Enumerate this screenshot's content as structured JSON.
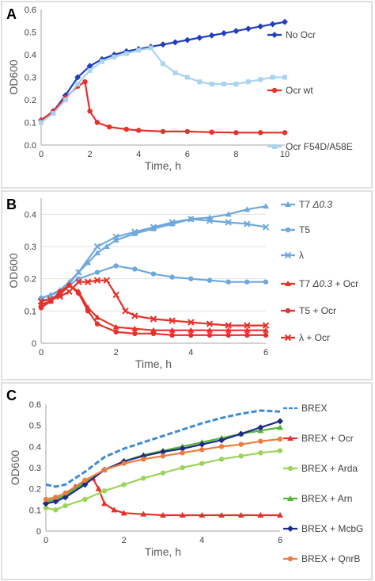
{
  "chart_data": [
    {
      "panel": "A",
      "type": "line",
      "xlabel": "Time, h",
      "ylabel": "OD600",
      "xlim": [
        0,
        10
      ],
      "ylim": [
        0,
        0.6
      ],
      "xticks": [
        0,
        2,
        4,
        6,
        8,
        10
      ],
      "xtick_labels": [
        "0",
        "2",
        "4",
        "6",
        "8",
        "10"
      ],
      "yticks": [
        0,
        0.1,
        0.2,
        0.3,
        0.4,
        0.5,
        0.6
      ],
      "ytick_labels": [
        "0.0",
        "0.1",
        "0.2",
        "0.3",
        "0.4",
        "0.5",
        "0.6"
      ],
      "grid": false,
      "legend": "right",
      "series": [
        {
          "name": "No Ocr",
          "color": "#1f3fbf",
          "marker": "diamond",
          "x": [
            0,
            0.5,
            1,
            1.5,
            2,
            2.5,
            3,
            3.5,
            4,
            4.5,
            5,
            5.5,
            6,
            6.5,
            7,
            7.5,
            8,
            8.5,
            9,
            9.5,
            10
          ],
          "y": [
            0.11,
            0.15,
            0.22,
            0.3,
            0.35,
            0.38,
            0.4,
            0.415,
            0.425,
            0.435,
            0.445,
            0.455,
            0.465,
            0.475,
            0.485,
            0.495,
            0.505,
            0.515,
            0.525,
            0.535,
            0.545
          ]
        },
        {
          "name": "Ocr wt",
          "color": "#e6312a",
          "marker": "circle",
          "x": [
            0,
            0.5,
            1,
            1.5,
            1.8,
            2.0,
            2.3,
            2.8,
            3.5,
            4,
            5,
            6,
            7,
            8,
            9,
            10
          ],
          "y": [
            0.11,
            0.15,
            0.21,
            0.26,
            0.28,
            0.15,
            0.1,
            0.08,
            0.07,
            0.065,
            0.06,
            0.06,
            0.057,
            0.055,
            0.055,
            0.055
          ]
        },
        {
          "name": "Ocr F54D/A58E",
          "color": "#a9d3ee",
          "marker": "square",
          "x": [
            0,
            0.5,
            1,
            1.5,
            2,
            2.5,
            3,
            3.5,
            4,
            4.5,
            5,
            5.5,
            6,
            6.5,
            7,
            7.5,
            8,
            8.5,
            9,
            9.5,
            10
          ],
          "y": [
            0.1,
            0.14,
            0.2,
            0.27,
            0.33,
            0.37,
            0.39,
            0.405,
            0.42,
            0.43,
            0.36,
            0.32,
            0.3,
            0.28,
            0.27,
            0.27,
            0.27,
            0.28,
            0.29,
            0.3,
            0.3
          ]
        }
      ]
    },
    {
      "panel": "B",
      "type": "line",
      "xlabel": "Time, h",
      "ylabel": "OD600",
      "xlim": [
        0,
        6
      ],
      "ylim": [
        0,
        0.45
      ],
      "xticks": [
        0,
        2,
        4,
        6
      ],
      "xtick_labels": [
        "0",
        "2",
        "4",
        "6"
      ],
      "yticks": [
        0,
        0.1,
        0.2,
        0.3,
        0.4
      ],
      "ytick_labels": [
        "0",
        "0.1",
        "0.2",
        "0.3",
        "0.4"
      ],
      "grid": true,
      "legend": "right",
      "series": [
        {
          "name": "T7 Δ0.3",
          "legend_prefix": "T7 ",
          "legend_italic": "Δ0.3",
          "legend_suffix": "",
          "color": "#6fa8dc",
          "marker": "triangle",
          "x": [
            0,
            0.25,
            0.5,
            0.75,
            1,
            1.25,
            1.5,
            1.75,
            2,
            2.5,
            3,
            3.5,
            4,
            4.5,
            5,
            5.5,
            6
          ],
          "y": [
            0.14,
            0.15,
            0.165,
            0.19,
            0.22,
            0.25,
            0.28,
            0.3,
            0.32,
            0.34,
            0.355,
            0.37,
            0.385,
            0.39,
            0.4,
            0.415,
            0.425
          ]
        },
        {
          "name": "T5",
          "legend_prefix": "T5",
          "color": "#6fa8dc",
          "marker": "circle",
          "x": [
            0,
            0.5,
            1,
            1.5,
            2,
            2.5,
            3,
            3.5,
            4,
            4.5,
            5,
            5.5,
            6
          ],
          "y": [
            0.14,
            0.16,
            0.2,
            0.22,
            0.24,
            0.23,
            0.215,
            0.205,
            0.2,
            0.195,
            0.19,
            0.19,
            0.19
          ]
        },
        {
          "name": "λ",
          "legend_prefix": "λ",
          "color": "#6fa8dc",
          "marker": "cross",
          "x": [
            0,
            0.5,
            1,
            1.5,
            2,
            2.5,
            3,
            3.5,
            4,
            4.5,
            5,
            5.5,
            6
          ],
          "y": [
            0.13,
            0.15,
            0.22,
            0.3,
            0.33,
            0.345,
            0.36,
            0.375,
            0.385,
            0.38,
            0.375,
            0.37,
            0.36
          ]
        },
        {
          "name": "T7 Δ0.3 + Ocr",
          "legend_prefix": "T7 ",
          "legend_italic": "Δ0.3",
          "legend_suffix": " + Ocr",
          "color": "#e6312a",
          "marker": "triangle",
          "x": [
            0,
            0.25,
            0.5,
            0.75,
            1,
            1.25,
            1.5,
            2,
            2.5,
            3,
            3.5,
            4,
            4.5,
            5,
            5.5,
            6
          ],
          "y": [
            0.12,
            0.13,
            0.15,
            0.18,
            0.16,
            0.11,
            0.08,
            0.05,
            0.045,
            0.04,
            0.04,
            0.04,
            0.04,
            0.04,
            0.04,
            0.04
          ]
        },
        {
          "name": "T5 + Ocr",
          "legend_prefix": "T5 + Ocr",
          "color": "#e6312a",
          "marker": "circle",
          "x": [
            0,
            0.25,
            0.5,
            0.75,
            1,
            1.25,
            1.5,
            2,
            2.5,
            3,
            3.5,
            4,
            4.5,
            5,
            5.5,
            6
          ],
          "y": [
            0.11,
            0.13,
            0.16,
            0.18,
            0.155,
            0.1,
            0.06,
            0.035,
            0.03,
            0.03,
            0.025,
            0.025,
            0.025,
            0.025,
            0.025,
            0.025
          ]
        },
        {
          "name": "λ + Ocr",
          "legend_prefix": "λ + Ocr",
          "color": "#e6312a",
          "marker": "cross",
          "x": [
            0,
            0.25,
            0.5,
            0.75,
            1,
            1.25,
            1.5,
            1.75,
            2,
            2.25,
            2.5,
            3,
            3.5,
            4,
            4.5,
            5,
            5.5,
            6
          ],
          "y": [
            0.13,
            0.135,
            0.145,
            0.16,
            0.19,
            0.19,
            0.195,
            0.195,
            0.15,
            0.1,
            0.085,
            0.075,
            0.07,
            0.065,
            0.06,
            0.055,
            0.055,
            0.055
          ]
        }
      ]
    },
    {
      "panel": "C",
      "type": "line",
      "xlabel": "Time, h",
      "ylabel": "OD600",
      "xlim": [
        0,
        6
      ],
      "ylim": [
        0,
        0.6
      ],
      "xticks": [
        0,
        2,
        4,
        6
      ],
      "xtick_labels": [
        "0",
        "2",
        "4",
        "6"
      ],
      "yticks": [
        0,
        0.1,
        0.2,
        0.3,
        0.4,
        0.5,
        0.6
      ],
      "ytick_labels": [
        "0",
        "0.1",
        "0.2",
        "0.3",
        "0.4",
        "0.5",
        "0.6"
      ],
      "grid": false,
      "legend": "right",
      "series": [
        {
          "name": "BREX",
          "color": "#3d8bd6",
          "marker": "dash",
          "x": [
            0,
            0.25,
            0.5,
            1,
            1.5,
            2,
            2.5,
            3,
            3.5,
            4,
            4.5,
            5,
            5.5,
            6
          ],
          "y": [
            0.22,
            0.21,
            0.22,
            0.28,
            0.35,
            0.39,
            0.42,
            0.45,
            0.48,
            0.51,
            0.535,
            0.555,
            0.57,
            0.565
          ]
        },
        {
          "name": "BREX + Ocr",
          "color": "#e6312a",
          "marker": "triangle",
          "x": [
            0,
            0.25,
            0.5,
            0.75,
            1,
            1.2,
            1.35,
            1.5,
            1.75,
            2,
            2.5,
            3,
            3.5,
            4,
            4.5,
            5,
            5.5,
            6
          ],
          "y": [
            0.14,
            0.15,
            0.17,
            0.21,
            0.24,
            0.25,
            0.2,
            0.13,
            0.1,
            0.085,
            0.08,
            0.075,
            0.075,
            0.075,
            0.075,
            0.075,
            0.075,
            0.075
          ]
        },
        {
          "name": "BREX + Arda",
          "color": "#9bd45a",
          "marker": "circle",
          "x": [
            0,
            0.25,
            0.5,
            1,
            1.5,
            2,
            2.5,
            3,
            3.5,
            4,
            4.5,
            5,
            5.5,
            6
          ],
          "y": [
            0.11,
            0.1,
            0.12,
            0.15,
            0.19,
            0.22,
            0.25,
            0.275,
            0.3,
            0.32,
            0.34,
            0.355,
            0.37,
            0.38
          ]
        },
        {
          "name": "BREX + Arn",
          "color": "#57b535",
          "marker": "triangle",
          "x": [
            0,
            0.25,
            0.5,
            1,
            1.5,
            2,
            2.5,
            3,
            3.5,
            4,
            4.5,
            5,
            5.5,
            6
          ],
          "y": [
            0.14,
            0.15,
            0.17,
            0.23,
            0.29,
            0.33,
            0.36,
            0.38,
            0.4,
            0.42,
            0.44,
            0.46,
            0.475,
            0.49
          ]
        },
        {
          "name": "BREX + McbG",
          "color": "#1d2a8a",
          "marker": "diamond",
          "x": [
            0,
            0.25,
            0.5,
            1,
            1.5,
            2,
            2.5,
            3,
            3.5,
            4,
            4.5,
            5,
            5.5,
            6
          ],
          "y": [
            0.13,
            0.14,
            0.16,
            0.22,
            0.29,
            0.33,
            0.355,
            0.375,
            0.39,
            0.41,
            0.43,
            0.46,
            0.49,
            0.52
          ]
        },
        {
          "name": "BREX + QnrB",
          "color": "#ef7c3d",
          "marker": "circle",
          "x": [
            0,
            0.25,
            0.5,
            1,
            1.5,
            2,
            2.5,
            3,
            3.5,
            4,
            4.5,
            5,
            5.5,
            6
          ],
          "y": [
            0.15,
            0.16,
            0.18,
            0.24,
            0.29,
            0.32,
            0.34,
            0.355,
            0.37,
            0.385,
            0.4,
            0.41,
            0.425,
            0.435
          ]
        }
      ]
    }
  ]
}
